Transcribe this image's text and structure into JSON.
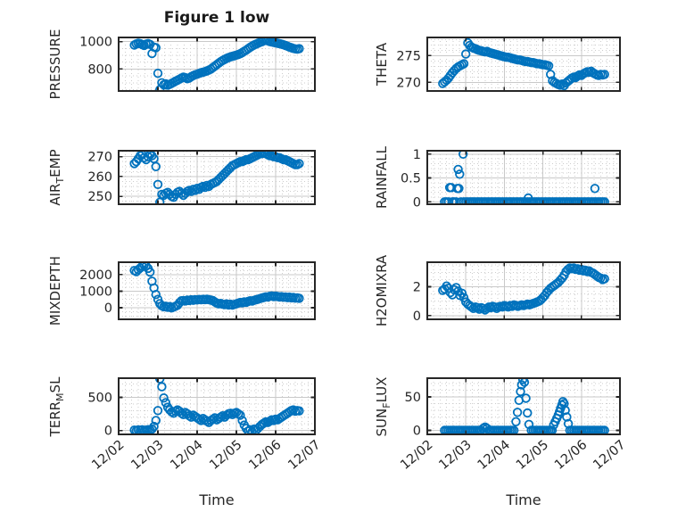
{
  "figure": {
    "title": "Figure 1 low",
    "colors": {
      "marker": "#0072BD",
      "axis": "#262626",
      "text": "#262626",
      "major_grid": "#c9c9c9",
      "minor_grid": "#cdcdcd",
      "background": "#ffffff"
    }
  },
  "chart_data": {
    "type": "scatter",
    "marker": "open-circle",
    "grid": "major-solid-minor-dotted",
    "x_axis": {
      "label": "Time",
      "xlim": [
        0,
        5
      ],
      "tick_values": [
        0,
        1,
        2,
        3,
        4,
        5
      ],
      "tick_labels": [
        "12/02",
        "12/03",
        "12/04",
        "12/05",
        "12/06",
        "12/07"
      ],
      "minor_divisions_per_major": 6,
      "tick_label_rotation_deg": -40
    },
    "shared_x": [
      0.4,
      0.45,
      0.5,
      0.55,
      0.6,
      0.65,
      0.7,
      0.75,
      0.8,
      0.85,
      0.9,
      0.95,
      1,
      1.05,
      1.1,
      1.15,
      1.2,
      1.25,
      1.3,
      1.35,
      1.4,
      1.45,
      1.5,
      1.55,
      1.6,
      1.65,
      1.7,
      1.75,
      1.8,
      1.85,
      1.9,
      1.95,
      2,
      2.05,
      2.1,
      2.15,
      2.2,
      2.25,
      2.3,
      2.35,
      2.4,
      2.45,
      2.5,
      2.55,
      2.6,
      2.65,
      2.7,
      2.75,
      2.8,
      2.85,
      2.9,
      2.95,
      3,
      3.05,
      3.1,
      3.15,
      3.2,
      3.25,
      3.3,
      3.35,
      3.4,
      3.45,
      3.5,
      3.55,
      3.6,
      3.65,
      3.7,
      3.75,
      3.8,
      3.85,
      3.9,
      3.95,
      4,
      4.05,
      4.1,
      4.15,
      4.2,
      4.25,
      4.3,
      4.35,
      4.4,
      4.45,
      4.5,
      4.55,
      4.6
    ],
    "subplots": [
      {
        "name": "PRESSURE",
        "row": 0,
        "col": 0,
        "ylabel_parts": [
          {
            "text": "PRESSURE",
            "sub": false
          }
        ],
        "ylim": [
          640,
          1030
        ],
        "yticks": [
          800,
          1000
        ],
        "y_minor_step": 50,
        "y": [
          975,
          983,
          988,
          985,
          978,
          972,
          981,
          986,
          979,
          913,
          960,
          955,
          769,
          650,
          700,
          685,
          692,
          683,
          688,
          695,
          703,
          712,
          718,
          726,
          734,
          741,
          737,
          729,
          735,
          744,
          752,
          758,
          762,
          768,
          773,
          777,
          781,
          786,
          792,
          800,
          810,
          821,
          832,
          843,
          853,
          862,
          870,
          877,
          883,
          888,
          893,
          897,
          901,
          906,
          912,
          920,
          929,
          938,
          948,
          958,
          967,
          975,
          982,
          988,
          994,
          999,
          1006,
          1010,
          1005,
          1000,
          997,
          994,
          991,
          988,
          985,
          981,
          977,
          972,
          966,
          960,
          955,
          950,
          947,
          945,
          948
        ]
      },
      {
        "name": "THETA",
        "row": 0,
        "col": 1,
        "ylabel_parts": [
          {
            "text": "THETA",
            "sub": false
          }
        ],
        "ylim": [
          268.4,
          278.4
        ],
        "yticks": [
          270,
          275
        ],
        "y_minor_step": 1,
        "y": [
          269.8,
          270.1,
          270.4,
          270.8,
          271.3,
          271.8,
          272.2,
          272.6,
          272.9,
          273.1,
          273.3,
          273.5,
          275.3,
          277.4,
          276.9,
          276.6,
          276.4,
          276.3,
          276.1,
          276,
          275.9,
          275.8,
          275.7,
          275.8,
          275.6,
          275.5,
          275.4,
          275.3,
          275.2,
          275.1,
          275,
          274.9,
          274.8,
          274.7,
          274.7,
          274.6,
          274.5,
          274.4,
          274.3,
          274.2,
          274.2,
          274.1,
          274,
          273.9,
          273.9,
          273.8,
          273.7,
          273.7,
          273.6,
          273.5,
          273.5,
          273.4,
          273.3,
          273.3,
          273.2,
          273.1,
          271.5,
          270.3,
          270,
          269.8,
          269.6,
          269.5,
          269.7,
          269.4,
          269.9,
          270.2,
          270.5,
          270.8,
          271,
          270.9,
          271.2,
          271.4,
          271.3,
          271.6,
          271.8,
          272,
          271.9,
          272.1,
          271.8,
          271.6,
          271.4,
          271.3,
          271.5,
          271.4,
          271.5
        ]
      },
      {
        "name": "AIR_TEMP",
        "row": 1,
        "col": 0,
        "ylabel_parts": [
          {
            "text": "AIR",
            "sub": false
          },
          {
            "text": "T",
            "sub": true
          },
          {
            "text": "EMP",
            "sub": false
          }
        ],
        "ylim": [
          246,
          273
        ],
        "yticks": [
          250,
          260,
          270
        ],
        "y_minor_step": 2.5,
        "y": [
          266.5,
          267.5,
          269,
          270.5,
          271,
          269.5,
          268.5,
          270,
          271,
          270.5,
          269,
          265,
          256,
          247,
          251,
          250.5,
          251.5,
          252,
          251,
          250,
          249.5,
          251,
          252,
          252.5,
          251.5,
          250.5,
          251.5,
          252.5,
          253,
          252.5,
          253.5,
          253,
          254,
          253.5,
          254.5,
          255,
          254.5,
          255.5,
          255,
          256,
          256.5,
          257,
          257.5,
          258.5,
          259.5,
          260.5,
          261.5,
          262.5,
          263.5,
          264.5,
          265.5,
          266,
          266.5,
          267,
          267.5,
          267.5,
          268,
          268.5,
          268.5,
          269,
          269.5,
          270,
          270.5,
          271,
          271.5,
          271.5,
          272,
          271.5,
          271,
          270.5,
          270.5,
          270,
          270,
          269.5,
          269.5,
          269,
          268.5,
          268.5,
          268,
          267.5,
          267,
          266.5,
          266,
          266,
          266.5
        ]
      },
      {
        "name": "RAINFALL",
        "row": 1,
        "col": 1,
        "ylabel_parts": [
          {
            "text": "RAINFALL",
            "sub": false
          }
        ],
        "ylim": [
          -0.05,
          1.07
        ],
        "yticks": [
          0,
          0.5,
          1
        ],
        "y_minor_step": 0.1,
        "x": [
          0.45,
          0.5,
          0.55,
          0.58,
          0.62,
          0.65,
          0.7,
          0.75,
          0.78,
          0.8,
          0.82,
          0.84,
          0.88,
          0.93,
          0.95,
          1,
          1.05,
          1.1,
          1.15,
          1.2,
          1.25,
          1.3,
          1.35,
          1.4,
          1.45,
          1.5,
          1.55,
          1.6,
          1.65,
          1.7,
          1.75,
          1.8,
          1.85,
          1.9,
          1.95,
          2,
          2.05,
          2.1,
          2.15,
          2.2,
          2.25,
          2.3,
          2.35,
          2.4,
          2.45,
          2.5,
          2.55,
          2.6,
          2.65,
          2.7,
          2.75,
          2.8,
          2.85,
          2.9,
          2.95,
          3,
          3.05,
          3.1,
          3.15,
          3.2,
          3.25,
          3.3,
          3.35,
          3.4,
          3.45,
          3.5,
          3.55,
          3.6,
          3.65,
          3.7,
          3.75,
          3.8,
          3.85,
          3.9,
          3.95,
          4,
          4.05,
          4.1,
          4.15,
          4.2,
          4.25,
          4.3,
          4.35,
          4.4,
          4.45,
          4.5,
          4.55,
          4.6,
          2.62,
          4.35
        ],
        "y": [
          0,
          0,
          0,
          0.3,
          0.3,
          0,
          0,
          0,
          0.28,
          0.68,
          0.28,
          0.58,
          0,
          1,
          0,
          0,
          0,
          0,
          0,
          0,
          0,
          0,
          0,
          0,
          0,
          0,
          0,
          0,
          0,
          0,
          0,
          0,
          0,
          0,
          0,
          0,
          0,
          0,
          0,
          0,
          0,
          0,
          0,
          0,
          0,
          0,
          0,
          0,
          0,
          0,
          0,
          0,
          0,
          0,
          0,
          0,
          0,
          0,
          0,
          0,
          0,
          0,
          0,
          0,
          0,
          0,
          0,
          0,
          0,
          0,
          0,
          0,
          0,
          0,
          0,
          0,
          0,
          0,
          0,
          0,
          0,
          0,
          0,
          0,
          0,
          0,
          0,
          0,
          0.08,
          0.28
        ]
      },
      {
        "name": "MIXDEPTH",
        "row": 2,
        "col": 0,
        "ylabel_parts": [
          {
            "text": "MIXDEPTH",
            "sub": false
          }
        ],
        "ylim": [
          -700,
          2750
        ],
        "yticks": [
          0,
          1000,
          2000
        ],
        "y_minor_step": 250,
        "y": [
          2250,
          2180,
          2300,
          2400,
          2520,
          2580,
          2520,
          2380,
          2150,
          1600,
          1200,
          800,
          500,
          250,
          120,
          60,
          90,
          30,
          70,
          -10,
          40,
          90,
          150,
          300,
          420,
          440,
          410,
          460,
          440,
          480,
          450,
          490,
          470,
          500,
          480,
          510,
          490,
          520,
          490,
          460,
          430,
          350,
          280,
          230,
          260,
          210,
          190,
          230,
          170,
          210,
          160,
          200,
          240,
          280,
          320,
          300,
          350,
          330,
          380,
          420,
          400,
          450,
          480,
          520,
          550,
          590,
          620,
          660,
          640,
          690,
          710,
          670,
          700,
          680,
          650,
          670,
          630,
          650,
          610,
          640,
          600,
          620,
          580,
          600,
          570
        ]
      },
      {
        "name": "H2OMIXRA",
        "row": 2,
        "col": 1,
        "ylabel_parts": [
          {
            "text": "H2OMIXRA",
            "sub": false
          }
        ],
        "ylim": [
          -0.25,
          3.7
        ],
        "yticks": [
          0,
          2
        ],
        "y_minor_step": 0.5,
        "y": [
          1.75,
          1.85,
          2.05,
          1.9,
          1.6,
          1.45,
          1.8,
          1.95,
          1.7,
          1.4,
          1.55,
          1.25,
          0.95,
          0.8,
          0.7,
          0.6,
          0.5,
          0.6,
          0.55,
          0.45,
          0.55,
          0.5,
          0.4,
          0.5,
          0.6,
          0.55,
          0.65,
          0.6,
          0.5,
          0.6,
          0.65,
          0.6,
          0.7,
          0.65,
          0.6,
          0.7,
          0.65,
          0.75,
          0.7,
          0.65,
          0.7,
          0.75,
          0.7,
          0.75,
          0.8,
          0.75,
          0.8,
          0.85,
          0.9,
          0.95,
          1,
          1.1,
          1.25,
          1.4,
          1.6,
          1.75,
          1.9,
          2,
          2.1,
          2.2,
          2.3,
          2.45,
          2.6,
          2.8,
          3.05,
          3.2,
          3.3,
          3.25,
          3.3,
          3.2,
          3.25,
          3.15,
          3.2,
          3.1,
          3.15,
          3.05,
          3.1,
          3,
          2.95,
          2.85,
          2.75,
          2.65,
          2.6,
          2.5,
          2.55
        ]
      },
      {
        "name": "TERR_MSL",
        "row": 3,
        "col": 0,
        "ylabel_parts": [
          {
            "text": "TERR",
            "sub": false
          },
          {
            "text": "M",
            "sub": true
          },
          {
            "text": "SL",
            "sub": false
          }
        ],
        "ylim": [
          -60,
          790
        ],
        "yticks": [
          0,
          500
        ],
        "y_minor_step": 100,
        "y": [
          5,
          -5,
          8,
          0,
          10,
          -8,
          5,
          12,
          8,
          20,
          60,
          150,
          300,
          780,
          660,
          490,
          420,
          350,
          310,
          280,
          260,
          290,
          310,
          290,
          260,
          240,
          270,
          250,
          220,
          200,
          230,
          210,
          190,
          170,
          150,
          180,
          160,
          140,
          120,
          150,
          170,
          190,
          160,
          180,
          200,
          220,
          200,
          230,
          250,
          260,
          240,
          260,
          270,
          250,
          230,
          150,
          80,
          30,
          -10,
          10,
          -20,
          20,
          0,
          30,
          60,
          90,
          110,
          130,
          120,
          140,
          160,
          150,
          170,
          160,
          180,
          200,
          220,
          240,
          260,
          280,
          300,
          310,
          290,
          300,
          295
        ]
      },
      {
        "name": "SUN_FLUX",
        "row": 3,
        "col": 1,
        "ylabel_parts": [
          {
            "text": "SUN",
            "sub": false
          },
          {
            "text": "F",
            "sub": true
          },
          {
            "text": "LUX",
            "sub": false
          }
        ],
        "ylim": [
          -6,
          78
        ],
        "yticks": [
          0,
          50
        ],
        "y_minor_step": 10,
        "x": [
          0.45,
          0.5,
          0.55,
          0.6,
          0.65,
          0.7,
          0.75,
          0.8,
          0.85,
          0.9,
          0.95,
          1,
          1.05,
          1.1,
          1.15,
          1.2,
          1.25,
          1.3,
          1.35,
          1.4,
          1.45,
          1.5,
          1.55,
          1.6,
          1.65,
          1.7,
          1.75,
          1.8,
          1.85,
          1.9,
          1.95,
          2,
          2.05,
          2.1,
          2.15,
          2.2,
          2.25,
          2.3,
          2.34,
          2.38,
          2.42,
          2.45,
          2.48,
          2.52,
          2.56,
          2.6,
          2.64,
          2.7,
          2.75,
          2.8,
          2.85,
          2.9,
          2.95,
          3,
          3.05,
          3.1,
          3.15,
          3.2,
          3.24,
          3.28,
          3.32,
          3.36,
          3.4,
          3.43,
          3.46,
          3.49,
          3.52,
          3.55,
          3.58,
          3.62,
          3.66,
          3.7,
          3.75,
          3.8,
          3.85,
          3.9,
          3.95,
          4,
          4.05,
          4.1,
          4.15,
          4.2,
          4.25,
          4.3,
          4.35,
          4.4,
          4.45,
          4.5,
          4.55,
          4.6
        ],
        "y": [
          0,
          0,
          0,
          0,
          0,
          0,
          0,
          0,
          0,
          0,
          0,
          0,
          0,
          0,
          0,
          0,
          0,
          0,
          0,
          0,
          3,
          5,
          3,
          0,
          0,
          0,
          0,
          0,
          0,
          0,
          0,
          0,
          0,
          0,
          0,
          0,
          0,
          13,
          27,
          45,
          58,
          68,
          76,
          72,
          48,
          26,
          9,
          0,
          0,
          0,
          0,
          0,
          0,
          0,
          0,
          0,
          0,
          0,
          0,
          8,
          13,
          18,
          23,
          28,
          33,
          38,
          43,
          40,
          30,
          20,
          10,
          0,
          0,
          0,
          0,
          0,
          0,
          0,
          0,
          0,
          0,
          0,
          0,
          0,
          0,
          0,
          0,
          0,
          0,
          0
        ]
      }
    ]
  }
}
